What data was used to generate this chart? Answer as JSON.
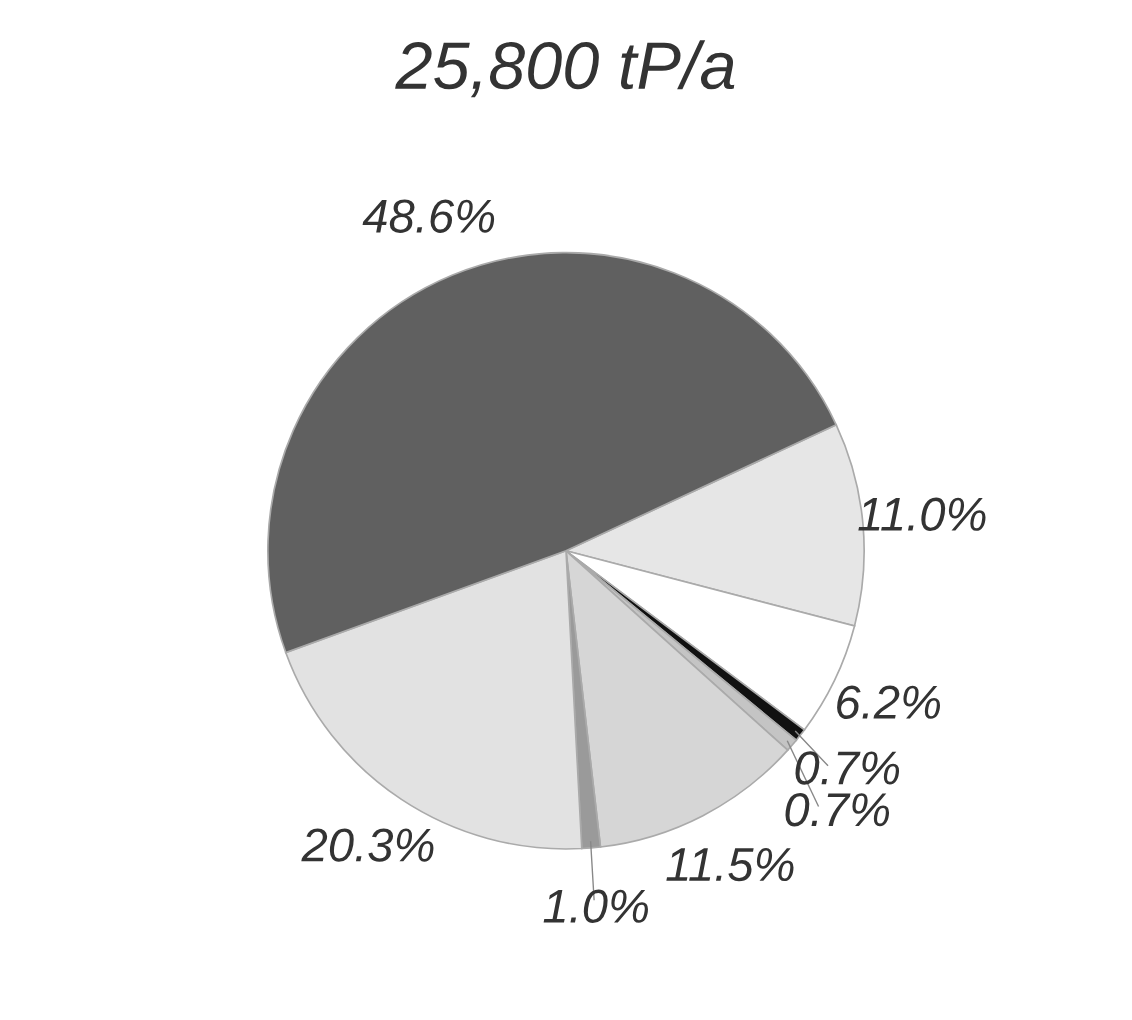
{
  "chart_data": {
    "type": "pie",
    "title": "25,800 tP/a",
    "categories": [
      null,
      null,
      null,
      null,
      null,
      null,
      null,
      null
    ],
    "values": [
      11.0,
      6.2,
      0.7,
      0.7,
      11.5,
      1.0,
      20.3,
      48.6
    ],
    "value_labels": [
      "11.0%",
      "6.2%",
      "0.7%",
      "0.7%",
      "11.5%",
      "1.0%",
      "20.3%",
      "48.6%"
    ],
    "colors": [
      "#e6e6e6",
      "#ffffff",
      "#111111",
      "#c4c4c4",
      "#d6d6d6",
      "#9a9a9a",
      "#e2e2e2",
      "#606060"
    ]
  }
}
